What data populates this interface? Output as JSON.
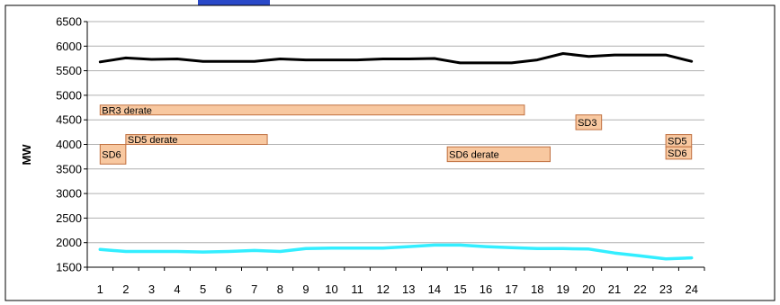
{
  "chart_data": {
    "type": "line",
    "ylabel": "MW",
    "xlabel": "",
    "ylim": [
      1500,
      6500
    ],
    "yticks": [
      1500,
      2000,
      2500,
      3000,
      3500,
      4000,
      4500,
      5000,
      5500,
      6000,
      6500
    ],
    "x": [
      1,
      2,
      3,
      4,
      5,
      6,
      7,
      8,
      9,
      10,
      11,
      12,
      13,
      14,
      15,
      16,
      17,
      18,
      19,
      20,
      21,
      22,
      23,
      24
    ],
    "grid": "horizontal",
    "series": [
      {
        "color": "#000000",
        "values": [
          5680,
          5760,
          5730,
          5740,
          5690,
          5690,
          5690,
          5740,
          5720,
          5720,
          5720,
          5740,
          5740,
          5750,
          5660,
          5660,
          5660,
          5720,
          5850,
          5790,
          5820,
          5820,
          5820,
          5690
        ]
      },
      {
        "color": "#33eeff",
        "values": [
          1860,
          1820,
          1820,
          1820,
          1810,
          1820,
          1840,
          1820,
          1880,
          1890,
          1890,
          1890,
          1920,
          1950,
          1950,
          1920,
          1900,
          1880,
          1880,
          1870,
          1790,
          1730,
          1670,
          1690
        ]
      }
    ],
    "events": [
      {
        "label": "BR3 derate",
        "x_start": 1,
        "x_end": 17.5,
        "y_low": 4600,
        "y_high": 4800
      },
      {
        "label": "SD5 derate",
        "x_start": 2,
        "x_end": 7.5,
        "y_low": 4000,
        "y_high": 4200
      },
      {
        "label": "SD6",
        "x_start": 1,
        "x_end": 2,
        "y_low": 3600,
        "y_high": 4000
      },
      {
        "label": "SD6 derate",
        "x_start": 14.5,
        "x_end": 18.5,
        "y_low": 3650,
        "y_high": 3950
      },
      {
        "label": "SD3",
        "x_start": 19.5,
        "x_end": 20.5,
        "y_low": 4300,
        "y_high": 4600
      },
      {
        "label": "SD5",
        "x_start": 23,
        "x_end": 24,
        "y_low": 3950,
        "y_high": 4200
      },
      {
        "label": "SD6",
        "x_start": 23,
        "x_end": 24,
        "y_low": 3700,
        "y_high": 3950
      }
    ],
    "colors": {
      "event_fill": "#f8c8a0",
      "event_stroke": "#c07040",
      "grid": "#b0b0b0",
      "axis": "#000000"
    }
  }
}
